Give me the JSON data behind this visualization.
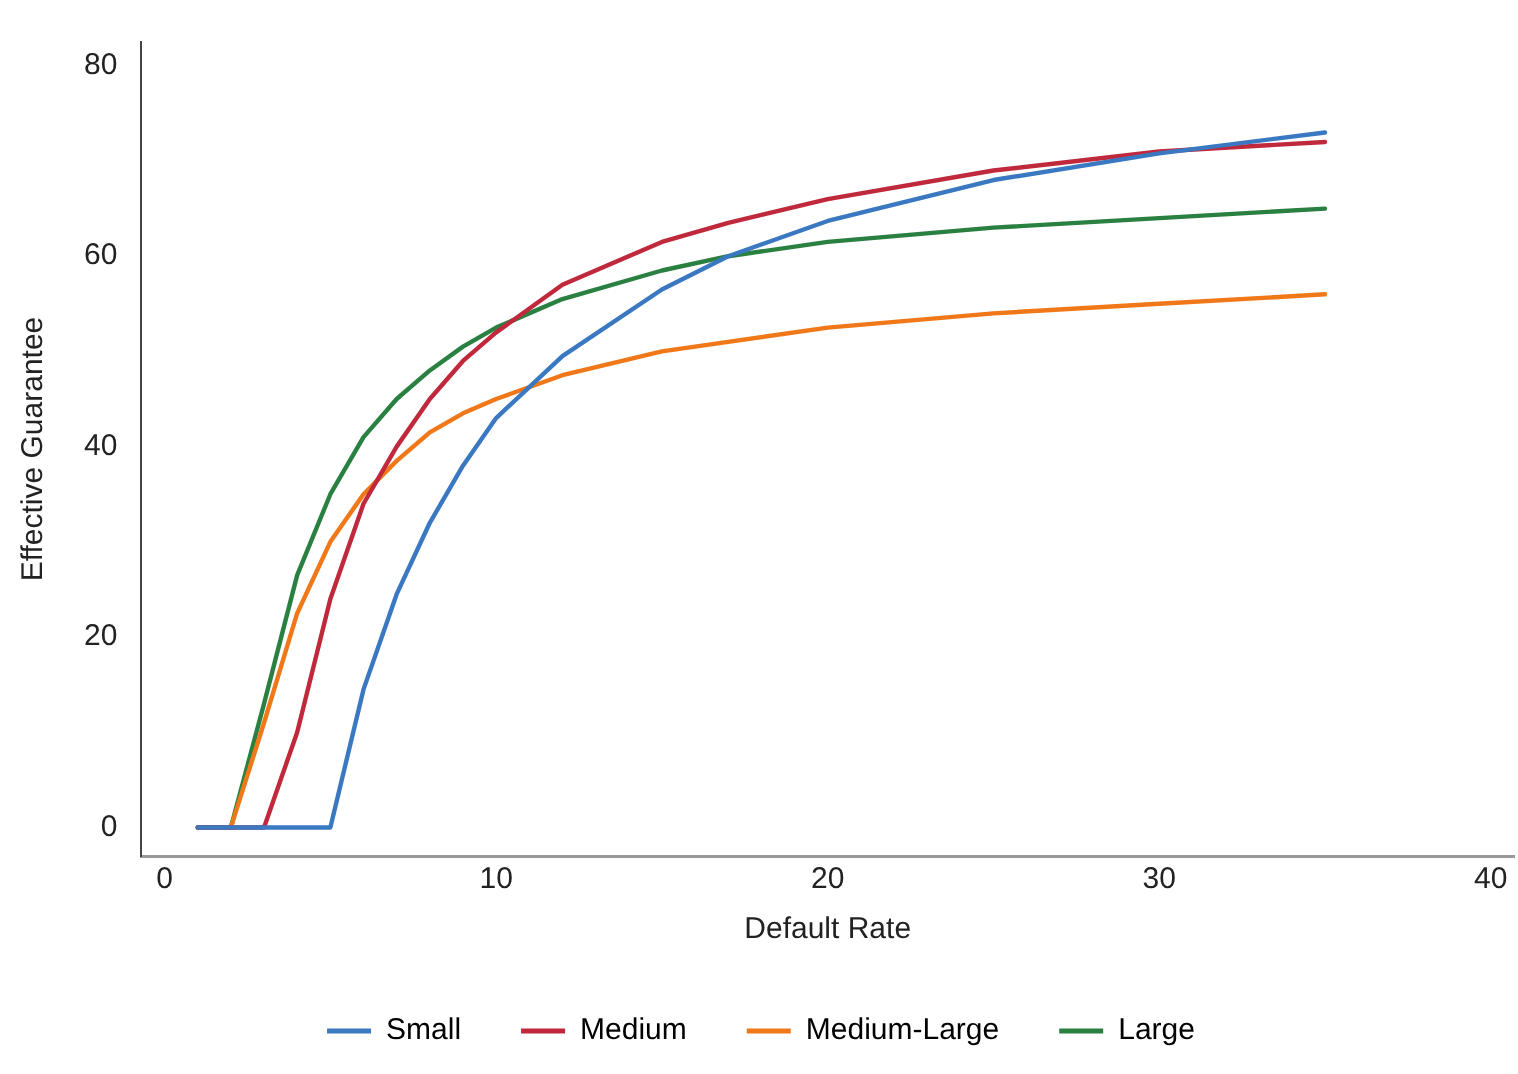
{
  "chart_data": {
    "type": "line",
    "xlabel": "Default Rate",
    "ylabel": "Effective Guarantee",
    "x": [
      1,
      2,
      3,
      4,
      5,
      6,
      7,
      8,
      9,
      10,
      12,
      15,
      17,
      20,
      25,
      30,
      35
    ],
    "series": [
      {
        "name": "Small",
        "color": "#3a78c2",
        "values": [
          0,
          0,
          0,
          0,
          0,
          14.5,
          24.5,
          32,
          38,
          43,
          49.5,
          56.5,
          60,
          63.7,
          68,
          70.8,
          73
        ]
      },
      {
        "name": "Medium",
        "color": "#c0283c",
        "values": [
          0,
          0,
          0,
          10,
          24,
          34,
          40,
          45,
          49,
          52,
          57,
          61.5,
          63.5,
          66,
          69,
          71,
          72
        ]
      },
      {
        "name": "Medium-Large",
        "color": "#f07818",
        "values": [
          0,
          0,
          11,
          22.5,
          30,
          35,
          38.5,
          41.5,
          43.5,
          45,
          47.5,
          50,
          51,
          52.5,
          54,
          55,
          56
        ]
      },
      {
        "name": "Large",
        "color": "#2a8040",
        "values": [
          0,
          0,
          13,
          26.5,
          35,
          41,
          45,
          48,
          50.5,
          52.5,
          55.5,
          58.5,
          60,
          61.5,
          63,
          64,
          65
        ]
      }
    ],
    "xlim": [
      -0.7,
      40.7
    ],
    "ylim": [
      -3,
      82.5
    ],
    "xticks": [
      0,
      10,
      20,
      30,
      40
    ],
    "yticks": [
      0,
      20,
      40,
      60,
      80
    ],
    "grid": false,
    "legend": "bottom",
    "marker": "none",
    "line_style": "solid"
  }
}
